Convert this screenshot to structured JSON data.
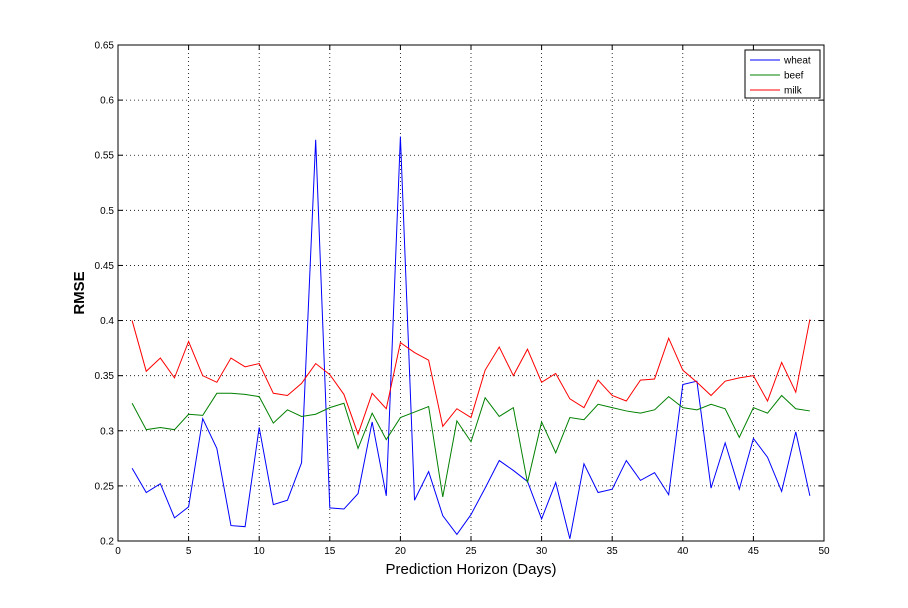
{
  "chart_data": {
    "type": "line",
    "xlabel": "Prediction Horizon (Days)",
    "ylabel": "RMSE",
    "xlim": [
      0,
      50
    ],
    "ylim": [
      0.2,
      0.65
    ],
    "xticks": [
      0,
      5,
      10,
      15,
      20,
      25,
      30,
      35,
      40,
      45,
      50
    ],
    "yticks": [
      0.2,
      0.25,
      0.3,
      0.35,
      0.4,
      0.45,
      0.5,
      0.55,
      0.6,
      0.65
    ],
    "xtick_labels": [
      "0",
      "5",
      "10",
      "15",
      "20",
      "25",
      "30",
      "35",
      "40",
      "45",
      "50"
    ],
    "ytick_labels": [
      "0.2",
      "0.25",
      "0.3",
      "0.35",
      "0.4",
      "0.45",
      "0.5",
      "0.55",
      "0.6",
      "0.65"
    ],
    "grid": true,
    "legend_position": "top-right",
    "x": [
      1,
      2,
      3,
      4,
      5,
      6,
      7,
      8,
      9,
      10,
      11,
      12,
      13,
      14,
      15,
      16,
      17,
      18,
      19,
      20,
      21,
      22,
      23,
      24,
      25,
      26,
      27,
      28,
      29,
      30,
      31,
      32,
      33,
      34,
      35,
      36,
      37,
      38,
      39,
      40,
      41,
      42,
      43,
      44,
      45,
      46,
      47,
      48,
      49
    ],
    "series": [
      {
        "name": "wheat",
        "color": "#0000ff",
        "values": [
          0.266,
          0.244,
          0.252,
          0.221,
          0.231,
          0.311,
          0.284,
          0.214,
          0.213,
          0.303,
          0.233,
          0.237,
          0.271,
          0.564,
          0.23,
          0.229,
          0.243,
          0.308,
          0.241,
          0.567,
          0.237,
          0.263,
          0.223,
          0.206,
          0.224,
          0.248,
          0.273,
          0.264,
          0.254,
          0.22,
          0.253,
          0.202,
          0.27,
          0.244,
          0.247,
          0.273,
          0.255,
          0.262,
          0.242,
          0.342,
          0.345,
          0.248,
          0.289,
          0.247,
          0.293,
          0.276,
          0.245,
          0.299,
          0.241
        ]
      },
      {
        "name": "beef",
        "color": "#008000",
        "values": [
          0.325,
          0.301,
          0.303,
          0.301,
          0.315,
          0.314,
          0.334,
          0.334,
          0.333,
          0.331,
          0.307,
          0.319,
          0.313,
          0.315,
          0.321,
          0.325,
          0.284,
          0.316,
          0.292,
          0.312,
          0.317,
          0.322,
          0.24,
          0.309,
          0.29,
          0.33,
          0.313,
          0.321,
          0.253,
          0.308,
          0.28,
          0.312,
          0.31,
          0.324,
          0.321,
          0.318,
          0.316,
          0.319,
          0.331,
          0.321,
          0.319,
          0.324,
          0.32,
          0.294,
          0.321,
          0.316,
          0.332,
          0.32,
          0.318
        ]
      },
      {
        "name": "milk",
        "color": "#ff0000",
        "values": [
          0.4,
          0.354,
          0.366,
          0.348,
          0.381,
          0.35,
          0.344,
          0.366,
          0.358,
          0.361,
          0.334,
          0.332,
          0.343,
          0.361,
          0.351,
          0.333,
          0.297,
          0.334,
          0.32,
          0.38,
          0.371,
          0.364,
          0.304,
          0.32,
          0.312,
          0.355,
          0.376,
          0.35,
          0.374,
          0.344,
          0.352,
          0.329,
          0.321,
          0.346,
          0.332,
          0.327,
          0.346,
          0.347,
          0.384,
          0.355,
          0.344,
          0.332,
          0.345,
          0.348,
          0.35,
          0.327,
          0.362,
          0.335,
          0.401
        ]
      }
    ]
  }
}
